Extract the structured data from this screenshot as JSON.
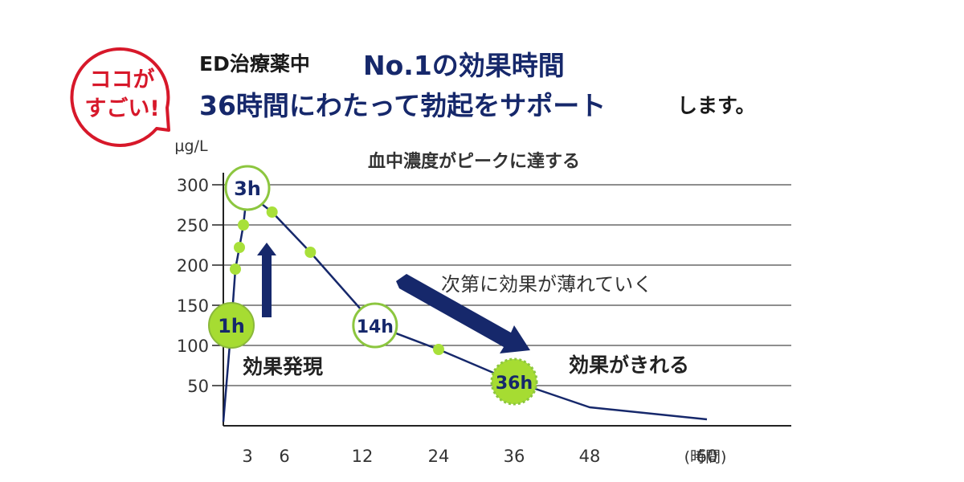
{
  "badge": {
    "line1": "ココが",
    "line2": "すごい!",
    "color": "#d7182a"
  },
  "headline": {
    "lead": "ED治療薬中",
    "highlight1": "No.1の効果時間",
    "highlight2": "36時間にわたって勃起をサポート",
    "tail": "します。",
    "highlight_color": "#16286b"
  },
  "chart_data": {
    "type": "line",
    "title": "血中濃度がピークに達する",
    "ylabel": "μg/L",
    "xunit": "(時間)",
    "xlabel": "",
    "ylim": [
      0,
      300
    ],
    "yticks": [
      50,
      100,
      150,
      200,
      250,
      300
    ],
    "xlim": [
      0,
      70
    ],
    "xticks": [
      3,
      6,
      12,
      24,
      36,
      48,
      60
    ],
    "grid": true,
    "series": [
      {
        "color": "#16286b",
        "points": [
          {
            "x": 0,
            "y": 5
          },
          {
            "x": 1,
            "y": 125
          },
          {
            "x": 1.5,
            "y": 195
          },
          {
            "x": 2,
            "y": 222
          },
          {
            "x": 2.5,
            "y": 250
          },
          {
            "x": 3,
            "y": 296
          },
          {
            "x": 4,
            "y": 278
          },
          {
            "x": 5,
            "y": 266
          },
          {
            "x": 8,
            "y": 216
          },
          {
            "x": 14,
            "y": 125
          },
          {
            "x": 24,
            "y": 95
          },
          {
            "x": 36,
            "y": 55
          },
          {
            "x": 48,
            "y": 23
          },
          {
            "x": 60,
            "y": 8
          }
        ]
      }
    ],
    "markers": [
      {
        "x": 1.5,
        "y": 195
      },
      {
        "x": 2,
        "y": 222
      },
      {
        "x": 2.5,
        "y": 250
      },
      {
        "x": 5,
        "y": 266
      },
      {
        "x": 8,
        "y": 216
      },
      {
        "x": 24,
        "y": 95
      }
    ],
    "time_badges": [
      {
        "label": "1h",
        "x": 1,
        "y": 125,
        "style": "filled"
      },
      {
        "label": "3h",
        "x": 3,
        "y": 296,
        "style": "outline"
      },
      {
        "label": "14h",
        "x": 14,
        "y": 125,
        "style": "outline"
      },
      {
        "label": "36h",
        "x": 36,
        "y": 55,
        "style": "filled-dashed"
      }
    ],
    "annotations": {
      "onset": "効果発現",
      "fading": "次第に効果が薄れていく",
      "wearoff": "効果がきれる"
    },
    "colors": {
      "line": "#16286b",
      "marker": "#a8e03a",
      "badge_ring": "#8cc63f",
      "badge_fill": "#a6dc32",
      "arrow": "#16286b",
      "grid": "#4a4a4a",
      "text": "#333333"
    }
  }
}
